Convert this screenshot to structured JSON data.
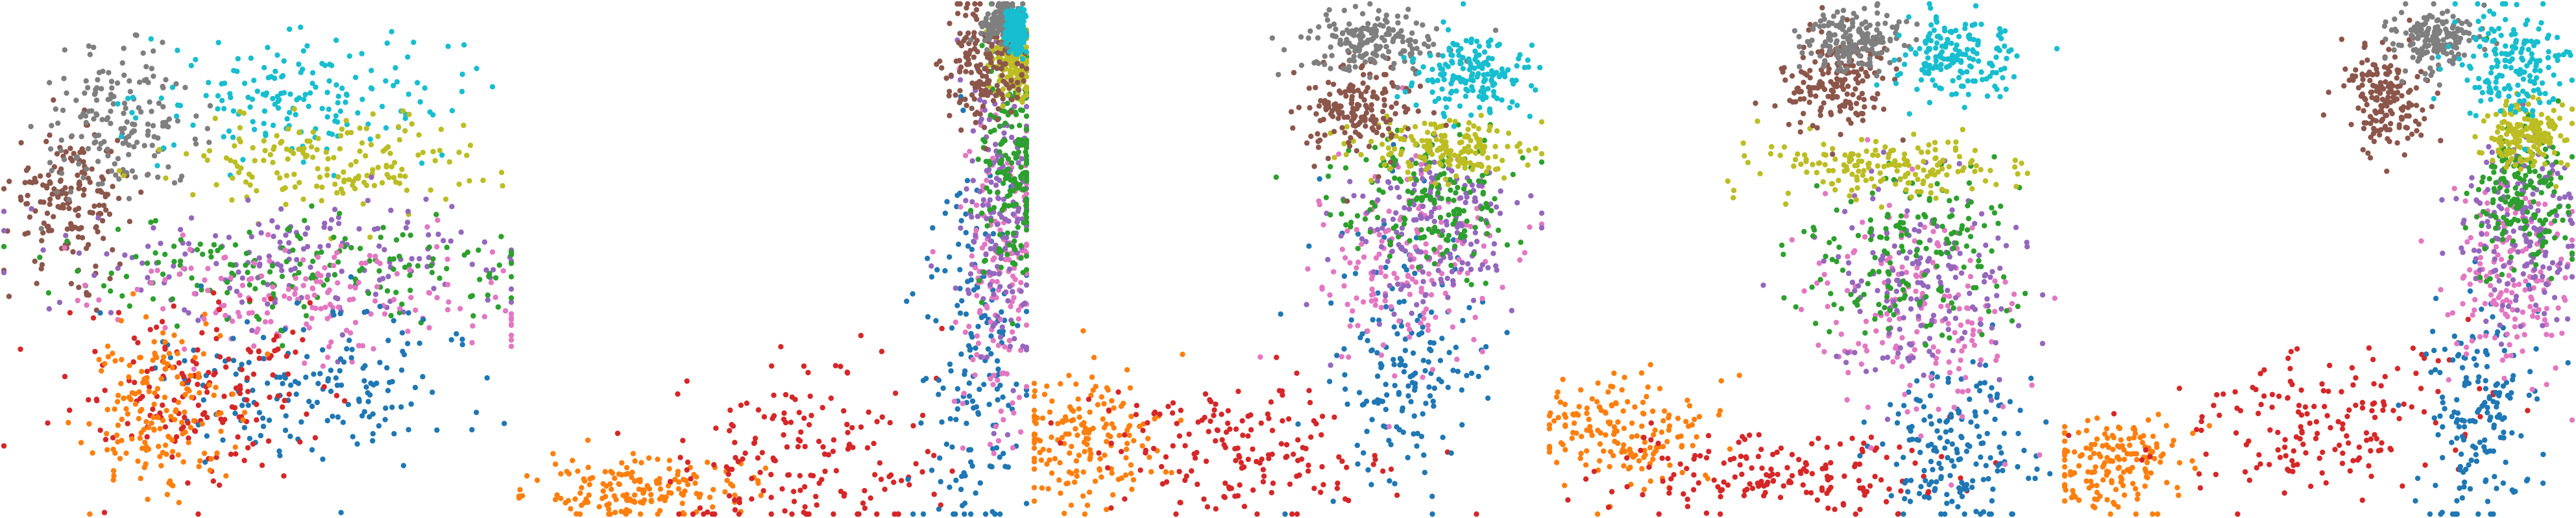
{
  "colors": {
    "blue": "#1f77b4",
    "orange": "#ff7f0e",
    "green": "#2ca02c",
    "red": "#d62728",
    "purple": "#9467bd",
    "brown": "#8c564b",
    "pink": "#e377c2",
    "gray": "#7f7f7f",
    "olive": "#bcbd22",
    "cyan": "#17becf"
  },
  "chart_data": [
    {
      "type": "scatter",
      "title": "",
      "xlabel": "",
      "ylabel": "",
      "grid": false,
      "legend": "none",
      "xlim": [
        0,
        1
      ],
      "ylim": [
        0,
        1
      ],
      "points_per_cluster": 170,
      "series": [
        {
          "color_key": "brown",
          "center": [
            0.13,
            0.62
          ],
          "spread": [
            0.06,
            0.07
          ]
        },
        {
          "color_key": "gray",
          "center": [
            0.23,
            0.76
          ],
          "spread": [
            0.08,
            0.07
          ]
        },
        {
          "color_key": "cyan",
          "center": [
            0.58,
            0.82
          ],
          "spread": [
            0.15,
            0.06
          ]
        },
        {
          "color_key": "olive",
          "center": [
            0.64,
            0.69
          ],
          "spread": [
            0.16,
            0.05
          ]
        },
        {
          "color_key": "purple",
          "center": [
            0.6,
            0.5
          ],
          "spread": [
            0.22,
            0.06
          ]
        },
        {
          "color_key": "green",
          "center": [
            0.62,
            0.48
          ],
          "spread": [
            0.24,
            0.05
          ]
        },
        {
          "color_key": "pink",
          "center": [
            0.62,
            0.42
          ],
          "spread": [
            0.22,
            0.06
          ]
        },
        {
          "color_key": "blue",
          "center": [
            0.62,
            0.26
          ],
          "spread": [
            0.16,
            0.08
          ]
        },
        {
          "color_key": "red",
          "center": [
            0.4,
            0.24
          ],
          "spread": [
            0.14,
            0.09
          ]
        },
        {
          "color_key": "orange",
          "center": [
            0.3,
            0.2
          ],
          "spread": [
            0.07,
            0.08
          ]
        }
      ]
    },
    {
      "type": "scatter",
      "title": "",
      "xlabel": "",
      "ylabel": "",
      "grid": false,
      "legend": "none",
      "xlim": [
        0,
        1
      ],
      "ylim": [
        0,
        1
      ],
      "points_per_cluster": 170,
      "series": [
        {
          "color_key": "orange",
          "center": [
            0.24,
            0.05
          ],
          "spread": [
            0.1,
            0.03
          ]
        },
        {
          "color_key": "red",
          "center": [
            0.55,
            0.12
          ],
          "spread": [
            0.14,
            0.1
          ]
        },
        {
          "color_key": "blue",
          "center": [
            0.9,
            0.3
          ],
          "spread": [
            0.05,
            0.2
          ]
        },
        {
          "color_key": "pink",
          "center": [
            0.95,
            0.5
          ],
          "spread": [
            0.04,
            0.18
          ]
        },
        {
          "color_key": "purple",
          "center": [
            0.95,
            0.58
          ],
          "spread": [
            0.04,
            0.15
          ]
        },
        {
          "color_key": "green",
          "center": [
            0.97,
            0.68
          ],
          "spread": [
            0.03,
            0.12
          ]
        },
        {
          "color_key": "olive",
          "center": [
            0.97,
            0.88
          ],
          "spread": [
            0.02,
            0.04
          ]
        },
        {
          "color_key": "brown",
          "center": [
            0.92,
            0.88
          ],
          "spread": [
            0.04,
            0.06
          ]
        },
        {
          "color_key": "gray",
          "center": [
            0.95,
            0.96
          ],
          "spread": [
            0.02,
            0.02
          ]
        },
        {
          "color_key": "cyan",
          "center": [
            0.98,
            0.95
          ],
          "spread": [
            0.01,
            0.02
          ]
        }
      ]
    },
    {
      "type": "scatter",
      "title": "",
      "xlabel": "",
      "ylabel": "",
      "grid": false,
      "legend": "none",
      "xlim": [
        0,
        1
      ],
      "ylim": [
        0,
        1
      ],
      "points_per_cluster": 170,
      "series": [
        {
          "color_key": "orange",
          "center": [
            0.1,
            0.15
          ],
          "spread": [
            0.08,
            0.07
          ]
        },
        {
          "color_key": "red",
          "center": [
            0.42,
            0.12
          ],
          "spread": [
            0.14,
            0.07
          ]
        },
        {
          "color_key": "blue",
          "center": [
            0.72,
            0.28
          ],
          "spread": [
            0.08,
            0.14
          ]
        },
        {
          "color_key": "pink",
          "center": [
            0.75,
            0.5
          ],
          "spread": [
            0.09,
            0.1
          ]
        },
        {
          "color_key": "purple",
          "center": [
            0.78,
            0.55
          ],
          "spread": [
            0.09,
            0.09
          ]
        },
        {
          "color_key": "green",
          "center": [
            0.78,
            0.62
          ],
          "spread": [
            0.09,
            0.07
          ]
        },
        {
          "color_key": "olive",
          "center": [
            0.8,
            0.72
          ],
          "spread": [
            0.08,
            0.03
          ]
        },
        {
          "color_key": "brown",
          "center": [
            0.64,
            0.8
          ],
          "spread": [
            0.06,
            0.05
          ]
        },
        {
          "color_key": "gray",
          "center": [
            0.66,
            0.92
          ],
          "spread": [
            0.07,
            0.03
          ]
        },
        {
          "color_key": "cyan",
          "center": [
            0.86,
            0.86
          ],
          "spread": [
            0.06,
            0.04
          ]
        }
      ]
    },
    {
      "type": "scatter",
      "title": "",
      "xlabel": "",
      "ylabel": "",
      "grid": false,
      "legend": "none",
      "xlim": [
        0,
        1
      ],
      "ylim": [
        0,
        1
      ],
      "points_per_cluster": 170,
      "series": [
        {
          "color_key": "orange",
          "center": [
            0.14,
            0.16
          ],
          "spread": [
            0.08,
            0.06
          ]
        },
        {
          "color_key": "red",
          "center": [
            0.45,
            0.08
          ],
          "spread": [
            0.16,
            0.04
          ]
        },
        {
          "color_key": "blue",
          "center": [
            0.8,
            0.14
          ],
          "spread": [
            0.08,
            0.08
          ]
        },
        {
          "color_key": "pink",
          "center": [
            0.72,
            0.4
          ],
          "spread": [
            0.1,
            0.12
          ]
        },
        {
          "color_key": "purple",
          "center": [
            0.74,
            0.46
          ],
          "spread": [
            0.1,
            0.1
          ]
        },
        {
          "color_key": "green",
          "center": [
            0.72,
            0.52
          ],
          "spread": [
            0.1,
            0.09
          ]
        },
        {
          "color_key": "olive",
          "center": [
            0.66,
            0.68
          ],
          "spread": [
            0.12,
            0.03
          ]
        },
        {
          "color_key": "brown",
          "center": [
            0.56,
            0.84
          ],
          "spread": [
            0.05,
            0.05
          ]
        },
        {
          "color_key": "gray",
          "center": [
            0.6,
            0.93
          ],
          "spread": [
            0.05,
            0.03
          ]
        },
        {
          "color_key": "cyan",
          "center": [
            0.8,
            0.9
          ],
          "spread": [
            0.06,
            0.04
          ]
        }
      ]
    },
    {
      "type": "scatter",
      "title": "",
      "xlabel": "",
      "ylabel": "",
      "grid": false,
      "legend": "none",
      "xlim": [
        0,
        1
      ],
      "ylim": [
        0,
        1
      ],
      "points_per_cluster": 170,
      "series": [
        {
          "color_key": "orange",
          "center": [
            0.1,
            0.1
          ],
          "spread": [
            0.07,
            0.05
          ]
        },
        {
          "color_key": "red",
          "center": [
            0.5,
            0.18
          ],
          "spread": [
            0.14,
            0.07
          ]
        },
        {
          "color_key": "blue",
          "center": [
            0.82,
            0.2
          ],
          "spread": [
            0.06,
            0.12
          ]
        },
        {
          "color_key": "pink",
          "center": [
            0.88,
            0.48
          ],
          "spread": [
            0.06,
            0.1
          ]
        },
        {
          "color_key": "purple",
          "center": [
            0.89,
            0.55
          ],
          "spread": [
            0.06,
            0.09
          ]
        },
        {
          "color_key": "green",
          "center": [
            0.9,
            0.62
          ],
          "spread": [
            0.05,
            0.07
          ]
        },
        {
          "color_key": "olive",
          "center": [
            0.91,
            0.74
          ],
          "spread": [
            0.04,
            0.03
          ]
        },
        {
          "color_key": "brown",
          "center": [
            0.63,
            0.82
          ],
          "spread": [
            0.04,
            0.05
          ]
        },
        {
          "color_key": "gray",
          "center": [
            0.73,
            0.93
          ],
          "spread": [
            0.04,
            0.03
          ]
        },
        {
          "color_key": "cyan",
          "center": [
            0.88,
            0.88
          ],
          "spread": [
            0.05,
            0.05
          ]
        }
      ]
    }
  ]
}
